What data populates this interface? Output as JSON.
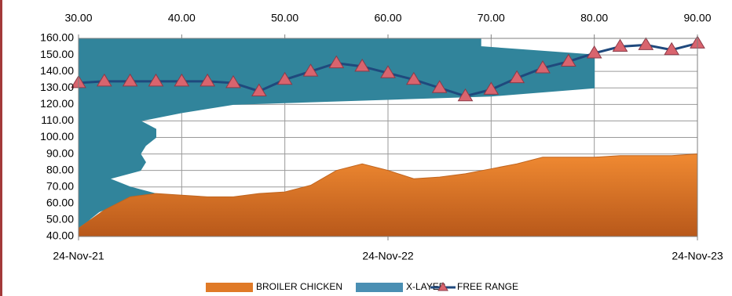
{
  "chart_data": {
    "type": "area",
    "x": [
      0,
      1,
      2,
      3,
      4,
      5,
      6,
      7,
      8,
      9,
      10,
      11,
      12,
      13,
      14,
      15,
      16,
      17,
      18,
      19,
      20,
      21,
      22,
      23,
      24
    ],
    "xlim": [
      0,
      24
    ],
    "xticks": [
      {
        "value": 0,
        "label": "24-Nov-21"
      },
      {
        "value": 12,
        "label": "24-Nov-22"
      },
      {
        "value": 24,
        "label": "24-Nov-23"
      }
    ],
    "x2lim": [
      30,
      90
    ],
    "x2ticks": [
      {
        "value": 30,
        "label": "30.00"
      },
      {
        "value": 40,
        "label": "40.00"
      },
      {
        "value": 50,
        "label": "50.00"
      },
      {
        "value": 60,
        "label": "60.00"
      },
      {
        "value": 70,
        "label": "70.00"
      },
      {
        "value": 80,
        "label": "80.00"
      },
      {
        "value": 90,
        "label": "90.00"
      }
    ],
    "ylim": [
      40,
      160
    ],
    "yticks": [
      {
        "value": 40,
        "label": "40.00"
      },
      {
        "value": 50,
        "label": "50.00"
      },
      {
        "value": 60,
        "label": "60.00"
      },
      {
        "value": 70,
        "label": "70.00"
      },
      {
        "value": 80,
        "label": "80.00"
      },
      {
        "value": 90,
        "label": "90.00"
      },
      {
        "value": 100,
        "label": "100.00"
      },
      {
        "value": 110,
        "label": "110.00"
      },
      {
        "value": 120,
        "label": "120.00"
      },
      {
        "value": 130,
        "label": "130.00"
      },
      {
        "value": 140,
        "label": "140.00"
      },
      {
        "value": 150,
        "label": "150.00"
      },
      {
        "value": 160,
        "label": "160.00"
      }
    ],
    "grid": true,
    "legend": "bottom",
    "series": [
      {
        "name": "BROILER CHICKEN",
        "type": "area",
        "color": "#e07a27",
        "values": [
          45,
          56,
          64,
          66,
          65,
          64,
          64,
          66,
          67,
          71,
          80,
          84,
          80,
          75,
          76,
          78,
          81,
          84,
          88,
          88,
          88,
          89,
          89,
          89,
          90
        ]
      },
      {
        "name": "X-LAYER",
        "type": "area",
        "axis": "x2",
        "color": "#31849b",
        "levels": [
          40,
          45,
          50,
          55,
          60,
          65,
          70,
          75,
          80,
          85,
          90,
          95,
          100,
          105,
          110,
          115,
          120,
          125,
          130,
          135,
          140,
          145,
          150,
          155,
          160
        ],
        "values": [
          35,
          31,
          31,
          32,
          34,
          38,
          35,
          33,
          36,
          36.5,
          36,
          36.5,
          37.5,
          37.5,
          36,
          40,
          45,
          70,
          80,
          80,
          80,
          80,
          80,
          69,
          69
        ]
      },
      {
        "name": "FREE RANGE",
        "type": "line",
        "color": "#1f497d",
        "marker_color": "#d9646e",
        "values": [
          133,
          134,
          134,
          134,
          134,
          134,
          133,
          128,
          135,
          140,
          145,
          143,
          139,
          135,
          130,
          125,
          129,
          136,
          142,
          146,
          151,
          155,
          156,
          153,
          157
        ]
      }
    ]
  }
}
